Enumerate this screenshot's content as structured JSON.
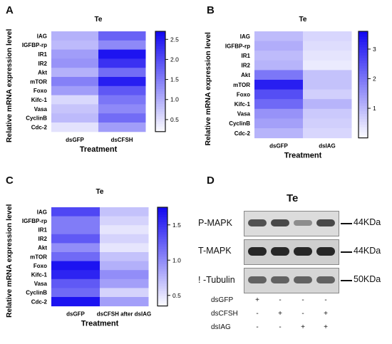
{
  "panels": {
    "A": "A",
    "B": "B",
    "C": "C",
    "D": "D"
  },
  "chart_data": [
    {
      "type": "heatmap",
      "title": "Te",
      "xlabel": "Treatment",
      "ylabel": "Relative mRNA expression level",
      "rows": [
        "IAG",
        "IGFBP-rp",
        "IR1",
        "IR2",
        "Akt",
        "mTOR",
        "Foxo",
        "Kifc-1",
        "Vasa",
        "CyclinB",
        "Cdc-2"
      ],
      "columns": [
        "dsGFP",
        "dsCFSH"
      ],
      "values": [
        [
          1.0,
          1.8
        ],
        [
          0.9,
          1.4
        ],
        [
          1.2,
          2.6
        ],
        [
          1.3,
          2.3
        ],
        [
          1.0,
          1.7
        ],
        [
          1.5,
          2.5
        ],
        [
          1.2,
          1.9
        ],
        [
          0.6,
          1.6
        ],
        [
          0.8,
          1.4
        ],
        [
          0.9,
          1.7
        ],
        [
          0.5,
          1.2
        ]
      ],
      "colorbar": {
        "min": 0.2,
        "max": 2.7,
        "ticks": [
          0.5,
          1.0,
          1.5,
          2.0,
          2.5
        ],
        "tick_labels": [
          "0.5",
          "1.0",
          "1.5",
          "2.0",
          "2.5"
        ]
      }
    },
    {
      "type": "heatmap",
      "title": "Te",
      "xlabel": "Treatment",
      "ylabel": "Relative mRNA expression level",
      "rows": [
        "IAG",
        "IGFBP-rp",
        "IR1",
        "IR2",
        "Akt",
        "mTOR",
        "Foxo",
        "Kifc-1",
        "Vasa",
        "CyclinB",
        "Cdc-2"
      ],
      "columns": [
        "dsGFP",
        "dsIAG"
      ],
      "values": [
        [
          1.0,
          0.6
        ],
        [
          1.2,
          0.5
        ],
        [
          1.0,
          0.4
        ],
        [
          1.1,
          0.3
        ],
        [
          2.0,
          0.9
        ],
        [
          3.3,
          0.9
        ],
        [
          2.6,
          0.7
        ],
        [
          2.2,
          1.1
        ],
        [
          1.6,
          0.8
        ],
        [
          1.4,
          0.7
        ],
        [
          1.1,
          0.6
        ]
      ],
      "colorbar": {
        "min": 0.0,
        "max": 3.6,
        "ticks": [
          1,
          2,
          3
        ],
        "tick_labels": [
          "1",
          "2",
          "3"
        ]
      }
    },
    {
      "type": "heatmap",
      "title": "Te",
      "xlabel": "Treatment",
      "ylabel": "Relative mRNA expression level",
      "rows": [
        "IAG",
        "IGFBP-rp",
        "IR1",
        "IR2",
        "Akt",
        "mTOR",
        "Foxo",
        "Kifc-1",
        "Vasa",
        "CyclinB",
        "Cdc-2"
      ],
      "columns": [
        "dsGFP",
        "dsCFSH after dsIAG"
      ],
      "values": [
        [
          1.4,
          0.7
        ],
        [
          1.1,
          0.6
        ],
        [
          1.1,
          0.5
        ],
        [
          1.3,
          0.6
        ],
        [
          1.0,
          0.5
        ],
        [
          1.2,
          0.7
        ],
        [
          1.7,
          0.8
        ],
        [
          1.6,
          1.0
        ],
        [
          1.3,
          0.9
        ],
        [
          1.2,
          0.6
        ],
        [
          1.7,
          0.9
        ]
      ],
      "colorbar": {
        "min": 0.35,
        "max": 1.75,
        "ticks": [
          0.5,
          1.0,
          1.5
        ],
        "tick_labels": [
          "0.5",
          "1.0",
          "1.5"
        ]
      }
    }
  ],
  "western_blot": {
    "title": "Te",
    "lanes": 4,
    "rows": [
      {
        "label": "P-MAPK",
        "size": "44KDa",
        "intensities": [
          0.7,
          0.75,
          0.35,
          0.75
        ]
      },
      {
        "label": "T-MAPK",
        "size": "44KDa",
        "intensities": [
          0.95,
          0.95,
          0.95,
          0.95
        ]
      },
      {
        "label": "! -Tubulin",
        "size": "50KDa",
        "intensities": [
          0.6,
          0.6,
          0.6,
          0.6
        ]
      }
    ],
    "treatments": [
      {
        "name": "dsGFP",
        "signs": [
          "+",
          "-",
          "-",
          "-"
        ]
      },
      {
        "name": "dsCFSH",
        "signs": [
          "-",
          "+",
          "-",
          "+"
        ]
      },
      {
        "name": "dsIAG",
        "signs": [
          "-",
          "-",
          "+",
          "+"
        ]
      }
    ]
  }
}
